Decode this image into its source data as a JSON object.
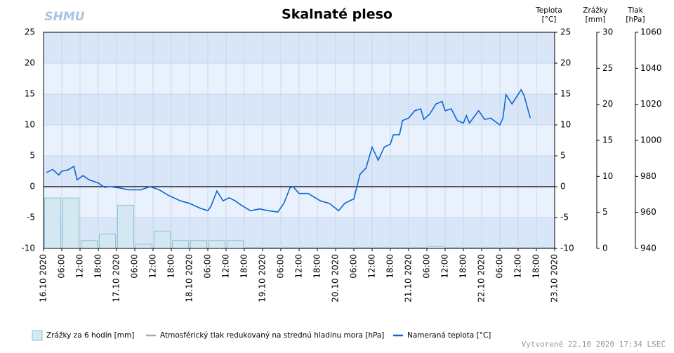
{
  "chart_data": {
    "type": "line",
    "title": "Skalnaté pleso",
    "logo": "SHMU",
    "footer": "Vytvorené 22.10 2020 17:34 LSEČ",
    "zero_line": true,
    "grid": true,
    "xlim": [
      "2020-10-16T00:00",
      "2020-10-23T00:00"
    ],
    "xticks": [
      {
        "value": "2020-10-16T00:00",
        "label": "16.10 2020"
      },
      {
        "value": "2020-10-16T06:00",
        "label": "06:00"
      },
      {
        "value": "2020-10-16T12:00",
        "label": "12:00"
      },
      {
        "value": "2020-10-16T18:00",
        "label": "18:00"
      },
      {
        "value": "2020-10-17T00:00",
        "label": "17.10 2020"
      },
      {
        "value": "2020-10-17T06:00",
        "label": "06:00"
      },
      {
        "value": "2020-10-17T12:00",
        "label": "12:00"
      },
      {
        "value": "2020-10-17T18:00",
        "label": "18:00"
      },
      {
        "value": "2020-10-18T00:00",
        "label": "18.10 2020"
      },
      {
        "value": "2020-10-18T06:00",
        "label": "06:00"
      },
      {
        "value": "2020-10-18T12:00",
        "label": "12:00"
      },
      {
        "value": "2020-10-18T18:00",
        "label": "18:00"
      },
      {
        "value": "2020-10-19T00:00",
        "label": "19.10 2020"
      },
      {
        "value": "2020-10-19T06:00",
        "label": "06:00"
      },
      {
        "value": "2020-10-19T12:00",
        "label": "12:00"
      },
      {
        "value": "2020-10-19T18:00",
        "label": "18:00"
      },
      {
        "value": "2020-10-20T00:00",
        "label": "20.10 2020"
      },
      {
        "value": "2020-10-20T06:00",
        "label": "06:00"
      },
      {
        "value": "2020-10-20T12:00",
        "label": "12:00"
      },
      {
        "value": "2020-10-20T18:00",
        "label": "18:00"
      },
      {
        "value": "2020-10-21T00:00",
        "label": "21.10 2020"
      },
      {
        "value": "2020-10-21T06:00",
        "label": "06:00"
      },
      {
        "value": "2020-10-21T12:00",
        "label": "12:00"
      },
      {
        "value": "2020-10-21T18:00",
        "label": "18:00"
      },
      {
        "value": "2020-10-22T00:00",
        "label": "22.10 2020"
      },
      {
        "value": "2020-10-22T06:00",
        "label": "06:00"
      },
      {
        "value": "2020-10-22T12:00",
        "label": "12:00"
      },
      {
        "value": "2020-10-22T18:00",
        "label": "18:00"
      },
      {
        "value": "2020-10-23T00:00",
        "label": "23.10 2020"
      }
    ],
    "ylim": [
      -10,
      25
    ],
    "yticks": [
      -10,
      -5,
      0,
      5,
      10,
      15,
      20,
      25
    ],
    "ylabel": [
      "Teplota",
      "[°C]"
    ],
    "y2lim": [
      0,
      30
    ],
    "y2ticks": [
      0,
      5,
      10,
      15,
      20,
      25,
      30
    ],
    "y2label": [
      "Zrážky",
      "[mm]"
    ],
    "y3lim": [
      940,
      1060
    ],
    "y3ticks": [
      940,
      960,
      980,
      1000,
      1020,
      1040,
      1060
    ],
    "y3label": [
      "Tlak",
      "[hPa]"
    ],
    "series": [
      {
        "name": "Zrážky za 6 hodín [mm]",
        "type": "bar",
        "axis": "y2",
        "color": "#d3e8f1",
        "x": [
          "2020-10-16T00:00",
          "2020-10-16T06:00",
          "2020-10-16T12:00",
          "2020-10-16T18:00",
          "2020-10-17T00:00",
          "2020-10-17T06:00",
          "2020-10-17T12:00",
          "2020-10-17T18:00",
          "2020-10-18T00:00",
          "2020-10-18T06:00",
          "2020-10-18T12:00",
          "2020-10-18T18:00",
          "2020-10-19T00:00",
          "2020-10-19T06:00",
          "2020-10-19T12:00",
          "2020-10-19T18:00",
          "2020-10-20T00:00",
          "2020-10-20T06:00",
          "2020-10-20T12:00",
          "2020-10-20T18:00",
          "2020-10-21T00:00",
          "2020-10-21T06:00",
          "2020-10-21T12:00",
          "2020-10-21T18:00",
          "2020-10-22T00:00",
          "2020-10-22T06:00",
          "2020-10-22T12:00",
          "2020-10-22T18:00"
        ],
        "values": [
          7.0,
          7.0,
          1.1,
          2.0,
          6.0,
          0.6,
          2.4,
          1.1,
          1.1,
          1.1,
          1.1,
          0.1,
          0.1,
          0.1,
          0.1,
          0.1,
          0.1,
          0.1,
          0.1,
          0.1,
          0.1,
          0.3,
          0.1,
          0.1,
          0.1,
          0.1,
          0.1,
          0.1
        ]
      },
      {
        "name": "Atmosférický tlak redukovaný na strednú hladinu mora [hPa]",
        "type": "line",
        "axis": "y3",
        "color": "#a9a9a9",
        "x": [],
        "values": []
      },
      {
        "name": "Nameraná teplota [°C]",
        "type": "line",
        "axis": "y",
        "color": "#0c67d4",
        "x": [
          "2020-10-16T01:00",
          "2020-10-16T03:00",
          "2020-10-16T05:00",
          "2020-10-16T06:00",
          "2020-10-16T08:00",
          "2020-10-16T10:00",
          "2020-10-16T11:00",
          "2020-10-16T13:00",
          "2020-10-16T15:00",
          "2020-10-16T18:00",
          "2020-10-16T20:00",
          "2020-10-16T22:00",
          "2020-10-17T01:00",
          "2020-10-17T04:00",
          "2020-10-17T08:00",
          "2020-10-17T11:00",
          "2020-10-17T14:00",
          "2020-10-17T17:00",
          "2020-10-17T21:00",
          "2020-10-18T00:00",
          "2020-10-18T03:00",
          "2020-10-18T06:00",
          "2020-10-18T07:00",
          "2020-10-18T09:00",
          "2020-10-18T11:00",
          "2020-10-18T13:00",
          "2020-10-18T15:00",
          "2020-10-18T17:00",
          "2020-10-18T20:00",
          "2020-10-18T23:00",
          "2020-10-19T02:00",
          "2020-10-19T05:00",
          "2020-10-19T07:00",
          "2020-10-19T09:00",
          "2020-10-19T10:00",
          "2020-10-19T12:00",
          "2020-10-19T15:00",
          "2020-10-19T19:00",
          "2020-10-19T22:00",
          "2020-10-20T01:00",
          "2020-10-20T03:00",
          "2020-10-20T05:00",
          "2020-10-20T06:00",
          "2020-10-20T08:00",
          "2020-10-20T10:00",
          "2020-10-20T12:00",
          "2020-10-20T14:00",
          "2020-10-20T16:00",
          "2020-10-20T18:00",
          "2020-10-20T19:00",
          "2020-10-20T21:00",
          "2020-10-20T22:00",
          "2020-10-21T00:00",
          "2020-10-21T02:00",
          "2020-10-21T04:00",
          "2020-10-21T05:00",
          "2020-10-21T07:00",
          "2020-10-21T09:00",
          "2020-10-21T11:00",
          "2020-10-21T12:00",
          "2020-10-21T14:00",
          "2020-10-21T16:00",
          "2020-10-21T18:00",
          "2020-10-21T19:00",
          "2020-10-21T20:00",
          "2020-10-21T23:00",
          "2020-10-22T01:00",
          "2020-10-22T03:00",
          "2020-10-22T06:00",
          "2020-10-22T07:00",
          "2020-10-22T08:00",
          "2020-10-22T10:00",
          "2020-10-22T13:00",
          "2020-10-22T14:00",
          "2020-10-22T16:00"
        ],
        "values": [
          2.3,
          2.8,
          1.9,
          2.5,
          2.7,
          3.3,
          1.1,
          1.8,
          1.1,
          0.6,
          -0.1,
          0,
          -0.2,
          -0.5,
          -0.5,
          0,
          -0.5,
          -1.4,
          -2.3,
          -2.7,
          -3.4,
          -3.9,
          -3.2,
          -0.7,
          -2.3,
          -1.8,
          -2.3,
          -3.0,
          -3.9,
          -3.6,
          -3.9,
          -4.1,
          -2.7,
          -0.2,
          0,
          -1.1,
          -1.1,
          -2.3,
          -2.7,
          -3.9,
          -2.7,
          -2.2,
          -2.0,
          2.0,
          3.0,
          6.4,
          4.3,
          6.4,
          6.9,
          8.4,
          8.4,
          10.7,
          11.1,
          12.3,
          12.6,
          10.9,
          11.8,
          13.4,
          13.8,
          12.3,
          12.6,
          10.7,
          10.3,
          11.5,
          10.3,
          12.3,
          10.9,
          11.1,
          10.0,
          11.1,
          14.9,
          13.4,
          15.7,
          14.7,
          11.1
        ]
      }
    ]
  }
}
